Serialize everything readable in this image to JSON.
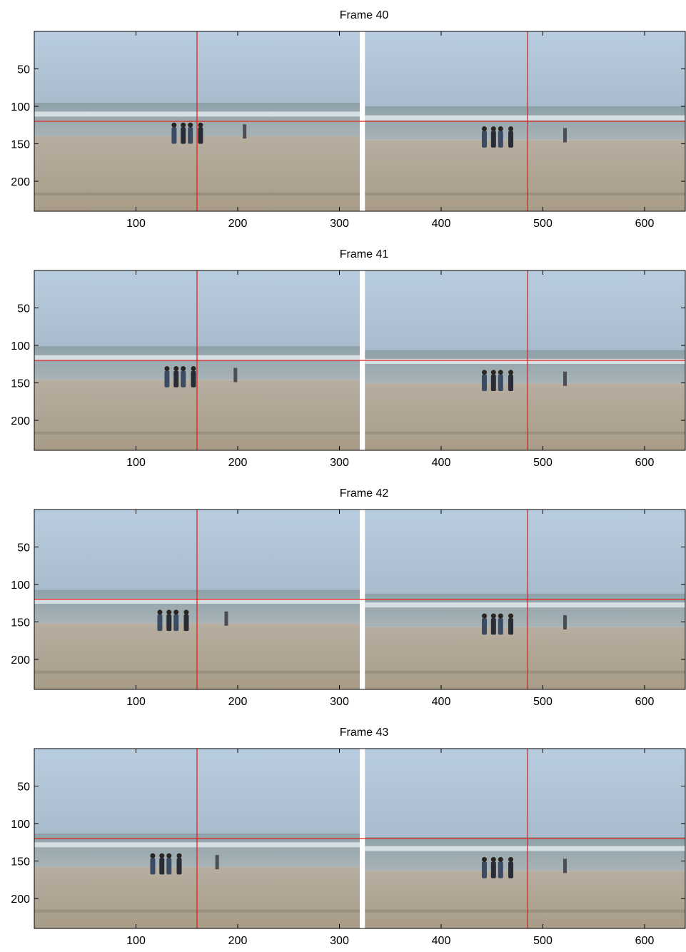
{
  "chart_data": [
    {
      "type": "image",
      "title": "Frame 40",
      "xlim": [
        0,
        640
      ],
      "ylim": [
        0,
        240
      ],
      "xticks": [
        100,
        200,
        300,
        400,
        500,
        600
      ],
      "yticks": [
        50,
        100,
        150,
        200
      ],
      "line_color": "#e8201c",
      "vlines": [
        160,
        485
      ],
      "hlines": [
        120
      ]
    },
    {
      "type": "image",
      "title": "Frame 41",
      "xlim": [
        0,
        640
      ],
      "ylim": [
        0,
        240
      ],
      "xticks": [
        100,
        200,
        300,
        400,
        500,
        600
      ],
      "yticks": [
        50,
        100,
        150,
        200
      ],
      "line_color": "#e8201c",
      "vlines": [
        160,
        485
      ],
      "hlines": [
        120
      ]
    },
    {
      "type": "image",
      "title": "Frame 42",
      "xlim": [
        0,
        640
      ],
      "ylim": [
        0,
        240
      ],
      "xticks": [
        100,
        200,
        300,
        400,
        500,
        600
      ],
      "yticks": [
        50,
        100,
        150,
        200
      ],
      "line_color": "#e8201c",
      "vlines": [
        160,
        485
      ],
      "hlines": [
        120
      ]
    },
    {
      "type": "image",
      "title": "Frame 43",
      "xlim": [
        0,
        640
      ],
      "ylim": [
        0,
        240
      ],
      "xticks": [
        100,
        200,
        300,
        400,
        500,
        600
      ],
      "yticks": [
        50,
        100,
        150,
        200
      ],
      "line_color": "#e8201c",
      "vlines": [
        160,
        485
      ],
      "hlines": [
        120
      ]
    }
  ]
}
